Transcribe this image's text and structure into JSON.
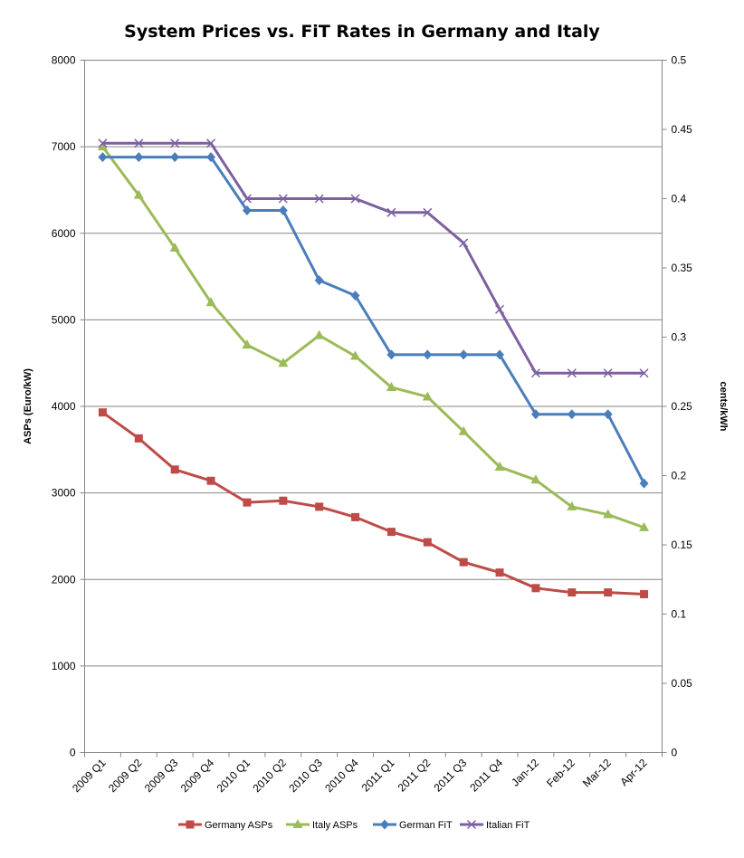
{
  "chart_data": {
    "type": "line",
    "title": "System Prices vs. FiT Rates in Germany and Italy",
    "categories": [
      "2009 Q1",
      "2009 Q2",
      "2009 Q3",
      "2009 Q4",
      "2010 Q1",
      "2010 Q2",
      "2010 Q3",
      "2010 Q4",
      "2011 Q1",
      "2011 Q2",
      "2011 Q3",
      "2011 Q4",
      "Jan-12",
      "Feb-12",
      "Mar-12",
      "Apr-12"
    ],
    "ylabel": "ASPs (Euro/kW)",
    "ylim": [
      0,
      8000
    ],
    "yticks": [
      0,
      1000,
      2000,
      3000,
      4000,
      5000,
      6000,
      7000,
      8000
    ],
    "ytick_labels": [
      "0",
      "1000",
      "2000",
      "3000",
      "4000",
      "5000",
      "6000",
      "7000",
      "8000"
    ],
    "y2label": "cents/kWh",
    "y2lim": [
      0,
      0.5
    ],
    "y2ticks": [
      0,
      0.05,
      0.1,
      0.15,
      0.2,
      0.25,
      0.3,
      0.35,
      0.4,
      0.45,
      0.5
    ],
    "y2tick_labels": [
      "0",
      "0.05",
      "0.1",
      "0.15",
      "0.2",
      "0.25",
      "0.3",
      "0.35",
      "0.4",
      "0.45",
      "0.5"
    ],
    "grid": true,
    "legend_position": "bottom",
    "series": [
      {
        "name": "Germany ASPs",
        "axis": "left",
        "color": "#be4b48",
        "marker": "square",
        "values": [
          3930,
          3630,
          3270,
          3140,
          2890,
          2910,
          2840,
          2720,
          2550,
          2430,
          2200,
          2080,
          1900,
          1850,
          1850,
          1830
        ]
      },
      {
        "name": "Italy ASPs",
        "axis": "left",
        "color": "#9bbb59",
        "marker": "triangle",
        "values": [
          7000,
          6440,
          5830,
          5200,
          4710,
          4500,
          4820,
          4580,
          4220,
          4110,
          3710,
          3300,
          3150,
          2840,
          2750,
          2600
        ]
      },
      {
        "name": "German FiT",
        "axis": "right",
        "color": "#4a7ebb",
        "marker": "diamond",
        "values": [
          0.43,
          0.43,
          0.43,
          0.43,
          0.3915,
          0.3915,
          0.341,
          0.33,
          0.2873,
          0.2873,
          0.2873,
          0.2873,
          0.2443,
          0.2443,
          0.2443,
          0.1944
        ]
      },
      {
        "name": "Italian FiT",
        "axis": "right",
        "color": "#7d60a0",
        "marker": "x",
        "values": [
          0.44,
          0.44,
          0.44,
          0.44,
          0.4,
          0.4,
          0.4,
          0.4,
          0.39,
          0.39,
          0.368,
          0.32,
          0.274,
          0.274,
          0.274,
          0.274
        ]
      }
    ]
  }
}
